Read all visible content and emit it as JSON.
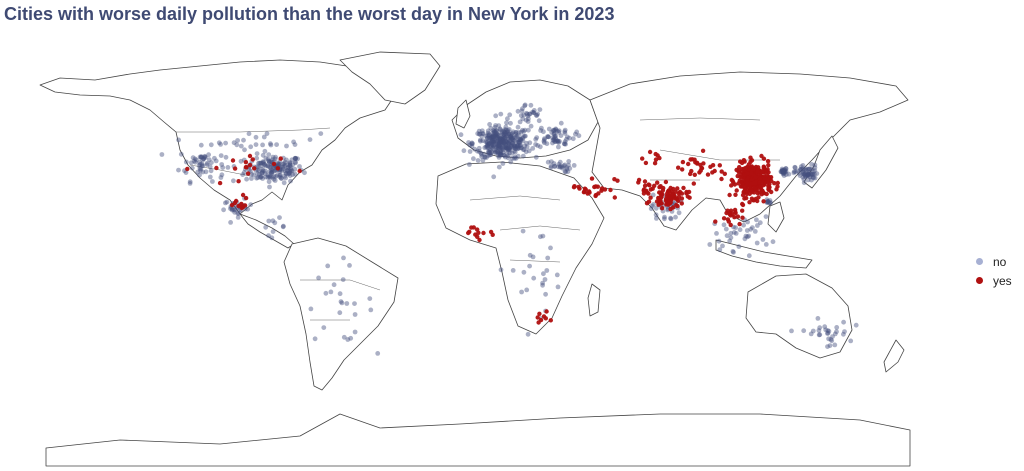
{
  "title": "Cities with worse daily pollution than the worst day in New York in 2023",
  "legend": {
    "items": [
      {
        "label": "no",
        "color": "#a7b0d3"
      },
      {
        "label": "yes",
        "color": "#b01010"
      }
    ]
  },
  "colors": {
    "no": "#44507f",
    "yes": "#b01010",
    "land_stroke": "#444444",
    "title": "#3f4a73"
  },
  "map_data": {
    "projection": "equirectangular",
    "lon_range": [
      -180,
      180
    ],
    "lat_range": [
      -90,
      90
    ],
    "clusters": [
      {
        "region": "eastern-usa",
        "lon": -85,
        "lat": 38,
        "spread": [
          10,
          5
        ],
        "count": 170,
        "category": "no"
      },
      {
        "region": "western-usa",
        "lon": -115,
        "lat": 40,
        "spread": [
          8,
          6
        ],
        "count": 60,
        "category": "no"
      },
      {
        "region": "canada",
        "lon": -90,
        "lat": 50,
        "spread": [
          20,
          3
        ],
        "count": 25,
        "category": "no"
      },
      {
        "region": "mexico",
        "lon": -100,
        "lat": 21,
        "spread": [
          5,
          3
        ],
        "count": 30,
        "category": "no"
      },
      {
        "region": "central-america",
        "lon": -85,
        "lat": 13,
        "spread": [
          4,
          3
        ],
        "count": 10,
        "category": "no"
      },
      {
        "region": "south-america",
        "lon": -58,
        "lat": -20,
        "spread": [
          12,
          14
        ],
        "count": 25,
        "category": "no"
      },
      {
        "region": "europe",
        "lon": 10,
        "lat": 49,
        "spread": [
          10,
          6
        ],
        "count": 350,
        "category": "no"
      },
      {
        "region": "scandinavia",
        "lon": 20,
        "lat": 61,
        "spread": [
          6,
          4
        ],
        "count": 30,
        "category": "no"
      },
      {
        "region": "eastern-europe",
        "lon": 32,
        "lat": 52,
        "spread": [
          7,
          4
        ],
        "count": 60,
        "category": "no"
      },
      {
        "region": "turkey",
        "lon": 33,
        "lat": 39,
        "spread": [
          5,
          2
        ],
        "count": 25,
        "category": "no"
      },
      {
        "region": "india",
        "lon": 78,
        "lat": 21,
        "spread": [
          5,
          5
        ],
        "count": 35,
        "category": "no"
      },
      {
        "region": "japan",
        "lon": 137,
        "lat": 36,
        "spread": [
          4,
          3
        ],
        "count": 60,
        "category": "no"
      },
      {
        "region": "korea",
        "lon": 127.5,
        "lat": 36.5,
        "spread": [
          1.5,
          1.5
        ],
        "count": 25,
        "category": "no"
      },
      {
        "region": "taiwan",
        "lon": 121,
        "lat": 24,
        "spread": [
          1,
          1
        ],
        "count": 10,
        "category": "no"
      },
      {
        "region": "southeast-asia",
        "lon": 110,
        "lat": 10,
        "spread": [
          10,
          6
        ],
        "count": 40,
        "category": "no"
      },
      {
        "region": "australia",
        "lon": 145,
        "lat": -33,
        "spread": [
          8,
          5
        ],
        "count": 30,
        "category": "no"
      },
      {
        "region": "africa",
        "lon": 25,
        "lat": -5,
        "spread": [
          15,
          15
        ],
        "count": 25,
        "category": "no"
      },
      {
        "region": "china-east",
        "lon": 115,
        "lat": 33,
        "spread": [
          6,
          6
        ],
        "count": 300,
        "category": "yes"
      },
      {
        "region": "china-west",
        "lon": 92,
        "lat": 38,
        "spread": [
          10,
          5
        ],
        "count": 30,
        "category": "yes"
      },
      {
        "region": "india-north",
        "lon": 80,
        "lat": 26,
        "spread": [
          6,
          4
        ],
        "count": 80,
        "category": "yes"
      },
      {
        "region": "pakistan",
        "lon": 70,
        "lat": 30,
        "spread": [
          3,
          3
        ],
        "count": 15,
        "category": "yes"
      },
      {
        "region": "middle-east",
        "lon": 48,
        "lat": 30,
        "spread": [
          8,
          4
        ],
        "count": 25,
        "category": "yes"
      },
      {
        "region": "west-africa",
        "lon": 0,
        "lat": 10,
        "spread": [
          8,
          3
        ],
        "count": 12,
        "category": "yes"
      },
      {
        "region": "southeast-asia",
        "lon": 105,
        "lat": 18,
        "spread": [
          4,
          3
        ],
        "count": 20,
        "category": "yes"
      },
      {
        "region": "usa-scattered",
        "lon": -100,
        "lat": 38,
        "spread": [
          15,
          6
        ],
        "count": 18,
        "category": "yes"
      },
      {
        "region": "mexico",
        "lon": -100,
        "lat": 23,
        "spread": [
          5,
          3
        ],
        "count": 10,
        "category": "yes"
      },
      {
        "region": "south-africa",
        "lon": 27,
        "lat": -26,
        "spread": [
          2,
          2
        ],
        "count": 8,
        "category": "yes"
      },
      {
        "region": "central-asia",
        "lon": 70,
        "lat": 42,
        "spread": [
          5,
          3
        ],
        "count": 8,
        "category": "yes"
      }
    ]
  }
}
